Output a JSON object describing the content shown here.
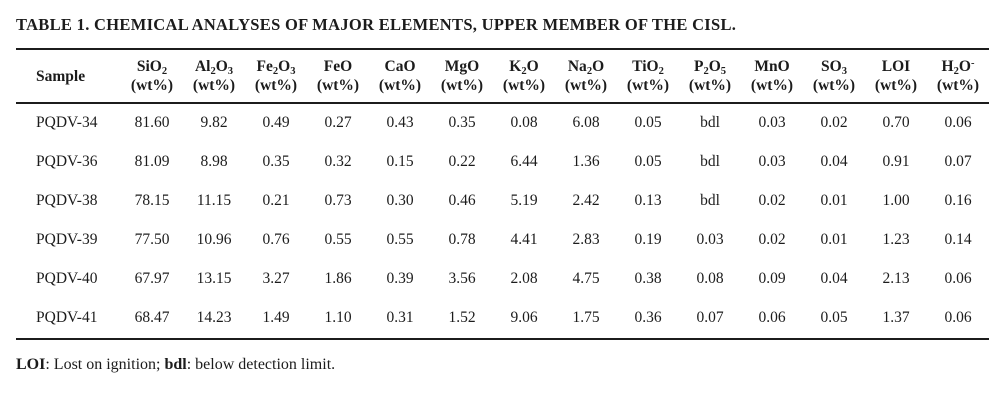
{
  "page": {
    "title": "TABLE 1. CHEMICAL ANALYSES OF MAJOR ELEMENTS, UPPER MEMBER OF THE CISL."
  },
  "table": {
    "sample_header": "Sample",
    "unit_label": "(wt%)",
    "columns": [
      {
        "id": "sio2",
        "name": "SiO2",
        "segments": [
          {
            "t": "SiO"
          },
          {
            "t": "2",
            "style": "sub"
          }
        ]
      },
      {
        "id": "al2o3",
        "name": "Al2O3",
        "segments": [
          {
            "t": "Al"
          },
          {
            "t": "2",
            "style": "sub"
          },
          {
            "t": "O"
          },
          {
            "t": "3",
            "style": "sub"
          }
        ]
      },
      {
        "id": "fe2o3",
        "name": "Fe2O3",
        "segments": [
          {
            "t": "Fe"
          },
          {
            "t": "2",
            "style": "sub"
          },
          {
            "t": "O"
          },
          {
            "t": "3",
            "style": "sub"
          }
        ]
      },
      {
        "id": "feo",
        "name": "FeO",
        "segments": [
          {
            "t": "FeO"
          }
        ]
      },
      {
        "id": "cao",
        "name": "CaO",
        "segments": [
          {
            "t": "CaO"
          }
        ]
      },
      {
        "id": "mgo",
        "name": "MgO",
        "segments": [
          {
            "t": "MgO"
          }
        ]
      },
      {
        "id": "k2o",
        "name": "K2O",
        "segments": [
          {
            "t": "K"
          },
          {
            "t": "2",
            "style": "sub"
          },
          {
            "t": "O"
          }
        ]
      },
      {
        "id": "na2o",
        "name": "Na2O",
        "segments": [
          {
            "t": "Na"
          },
          {
            "t": "2",
            "style": "sub"
          },
          {
            "t": "O"
          }
        ]
      },
      {
        "id": "tio2",
        "name": "TiO2",
        "segments": [
          {
            "t": "TiO"
          },
          {
            "t": "2",
            "style": "sub"
          }
        ]
      },
      {
        "id": "p2o5",
        "name": "P2O5",
        "segments": [
          {
            "t": "P"
          },
          {
            "t": "2",
            "style": "sub"
          },
          {
            "t": "O"
          },
          {
            "t": "5",
            "style": "sub"
          }
        ]
      },
      {
        "id": "mno",
        "name": "MnO",
        "segments": [
          {
            "t": "MnO"
          }
        ]
      },
      {
        "id": "so3",
        "name": "SO3",
        "segments": [
          {
            "t": "SO"
          },
          {
            "t": "3",
            "style": "sub"
          }
        ]
      },
      {
        "id": "loi",
        "name": "LOI",
        "segments": [
          {
            "t": "LOI"
          }
        ]
      },
      {
        "id": "h2o",
        "name": "H2O-",
        "segments": [
          {
            "t": "H"
          },
          {
            "t": "2",
            "style": "sub"
          },
          {
            "t": "O"
          },
          {
            "t": "-",
            "style": "sup"
          }
        ]
      }
    ],
    "rows": [
      {
        "sample": "PQDV-34",
        "values": [
          "81.60",
          "9.82",
          "0.49",
          "0.27",
          "0.43",
          "0.35",
          "0.08",
          "6.08",
          "0.05",
          "bdl",
          "0.03",
          "0.02",
          "0.70",
          "0.06"
        ]
      },
      {
        "sample": "PQDV-36",
        "values": [
          "81.09",
          "8.98",
          "0.35",
          "0.32",
          "0.15",
          "0.22",
          "6.44",
          "1.36",
          "0.05",
          "bdl",
          "0.03",
          "0.04",
          "0.91",
          "0.07"
        ]
      },
      {
        "sample": "PQDV-38",
        "values": [
          "78.15",
          "11.15",
          "0.21",
          "0.73",
          "0.30",
          "0.46",
          "5.19",
          "2.42",
          "0.13",
          "bdl",
          "0.02",
          "0.01",
          "1.00",
          "0.16"
        ]
      },
      {
        "sample": "PQDV-39",
        "values": [
          "77.50",
          "10.96",
          "0.76",
          "0.55",
          "0.55",
          "0.78",
          "4.41",
          "2.83",
          "0.19",
          "0.03",
          "0.02",
          "0.01",
          "1.23",
          "0.14"
        ]
      },
      {
        "sample": "PQDV-40",
        "values": [
          "67.97",
          "13.15",
          "3.27",
          "1.86",
          "0.39",
          "3.56",
          "2.08",
          "4.75",
          "0.38",
          "0.08",
          "0.09",
          "0.04",
          "2.13",
          "0.06"
        ]
      },
      {
        "sample": "PQDV-41",
        "values": [
          "68.47",
          "14.23",
          "1.49",
          "1.10",
          "0.31",
          "1.52",
          "9.06",
          "1.75",
          "0.36",
          "0.07",
          "0.06",
          "0.05",
          "1.37",
          "0.06"
        ]
      }
    ]
  },
  "footnote": {
    "segments": [
      {
        "t": "LOI",
        "bold": true
      },
      {
        "t": ": Lost on ignition; "
      },
      {
        "t": "bdl",
        "bold": true
      },
      {
        "t": ": below detection limit."
      }
    ]
  }
}
